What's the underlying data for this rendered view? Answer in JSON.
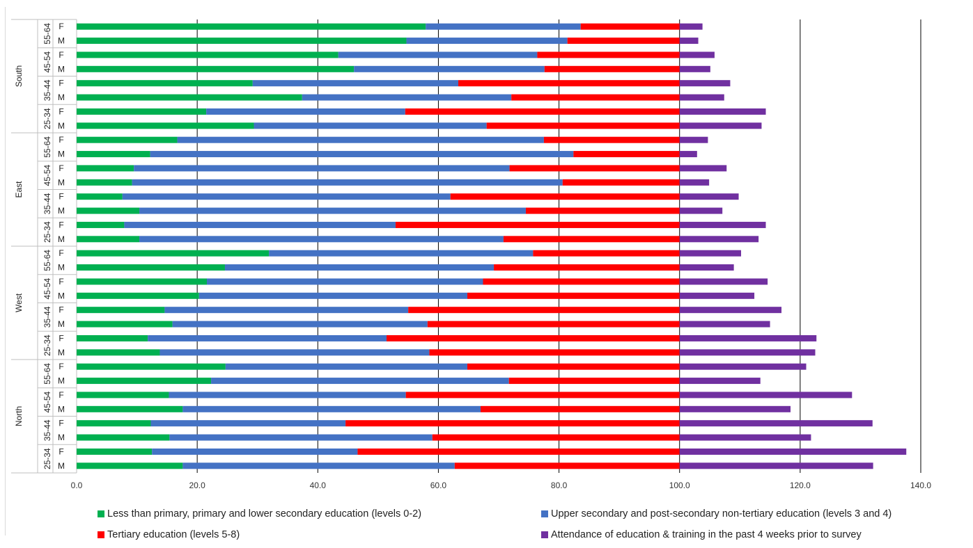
{
  "chart_data": {
    "type": "bar",
    "orientation": "horizontal",
    "stacked": true,
    "xlim": [
      0,
      140
    ],
    "xticks": [
      "0.0",
      "20.0",
      "40.0",
      "60.0",
      "80.0",
      "100.0",
      "120.0",
      "140.0"
    ],
    "grid": true,
    "legend_position": "bottom",
    "regions": [
      "South",
      "East",
      "West",
      "North"
    ],
    "age_groups": [
      "55-64",
      "45-54",
      "35-44",
      "25-34"
    ],
    "sexes": [
      "F",
      "M"
    ],
    "series": [
      {
        "name": "Less than primary, primary and lower secondary education (levels 0-2)",
        "color": "#00b050"
      },
      {
        "name": "Upper secondary and post-secondary non-tertiary education (levels 3 and 4)",
        "color": "#4472c4"
      },
      {
        "name": "Tertiary education (levels 5-8)",
        "color": "#ff0000"
      },
      {
        "name": "Attendance of education & training in the past 4 weeks prior to survey",
        "color": "#7030a0"
      }
    ],
    "rows": [
      {
        "region": "South",
        "age": "55-64",
        "sex": "F",
        "values": [
          57.9,
          25.7,
          16.4,
          3.8
        ]
      },
      {
        "region": "South",
        "age": "55-64",
        "sex": "M",
        "values": [
          54.7,
          26.7,
          18.6,
          3.1
        ]
      },
      {
        "region": "South",
        "age": "45-54",
        "sex": "F",
        "values": [
          43.4,
          33.0,
          23.6,
          5.8
        ]
      },
      {
        "region": "South",
        "age": "45-54",
        "sex": "M",
        "values": [
          46.0,
          31.6,
          22.4,
          5.1
        ]
      },
      {
        "region": "South",
        "age": "35-44",
        "sex": "F",
        "values": [
          29.2,
          34.1,
          36.7,
          8.4
        ]
      },
      {
        "region": "South",
        "age": "35-44",
        "sex": "M",
        "values": [
          37.4,
          34.7,
          27.9,
          7.4
        ]
      },
      {
        "region": "South",
        "age": "25-34",
        "sex": "F",
        "values": [
          21.5,
          33.0,
          45.5,
          14.3
        ]
      },
      {
        "region": "South",
        "age": "25-34",
        "sex": "M",
        "values": [
          29.4,
          38.6,
          32.0,
          13.6
        ]
      },
      {
        "region": "East",
        "age": "55-64",
        "sex": "F",
        "values": [
          16.7,
          60.8,
          22.5,
          4.7
        ]
      },
      {
        "region": "East",
        "age": "55-64",
        "sex": "M",
        "values": [
          12.2,
          70.2,
          17.6,
          2.9
        ]
      },
      {
        "region": "East",
        "age": "45-54",
        "sex": "F",
        "values": [
          9.5,
          62.3,
          28.2,
          7.8
        ]
      },
      {
        "region": "East",
        "age": "45-54",
        "sex": "M",
        "values": [
          9.2,
          71.4,
          19.4,
          4.9
        ]
      },
      {
        "region": "East",
        "age": "35-44",
        "sex": "F",
        "values": [
          7.6,
          54.4,
          38.0,
          9.8
        ]
      },
      {
        "region": "East",
        "age": "35-44",
        "sex": "M",
        "values": [
          10.4,
          64.1,
          25.5,
          7.1
        ]
      },
      {
        "region": "East",
        "age": "25-34",
        "sex": "F",
        "values": [
          7.9,
          45.0,
          47.1,
          14.3
        ]
      },
      {
        "region": "East",
        "age": "25-34",
        "sex": "M",
        "values": [
          10.4,
          60.4,
          29.2,
          13.1
        ]
      },
      {
        "region": "West",
        "age": "55-64",
        "sex": "F",
        "values": [
          31.9,
          43.8,
          24.3,
          10.2
        ]
      },
      {
        "region": "West",
        "age": "55-64",
        "sex": "M",
        "values": [
          24.6,
          44.6,
          30.8,
          9.0
        ]
      },
      {
        "region": "West",
        "age": "45-54",
        "sex": "F",
        "values": [
          21.6,
          45.8,
          32.6,
          14.6
        ]
      },
      {
        "region": "West",
        "age": "45-54",
        "sex": "M",
        "values": [
          20.3,
          44.5,
          35.2,
          12.4
        ]
      },
      {
        "region": "West",
        "age": "35-44",
        "sex": "F",
        "values": [
          14.6,
          40.4,
          45.0,
          16.9
        ]
      },
      {
        "region": "West",
        "age": "35-44",
        "sex": "M",
        "values": [
          15.9,
          42.3,
          41.8,
          15.0
        ]
      },
      {
        "region": "West",
        "age": "25-34",
        "sex": "F",
        "values": [
          11.8,
          39.6,
          48.6,
          22.7
        ]
      },
      {
        "region": "West",
        "age": "25-34",
        "sex": "M",
        "values": [
          13.8,
          44.7,
          41.5,
          22.5
        ]
      },
      {
        "region": "North",
        "age": "55-64",
        "sex": "F",
        "values": [
          24.7,
          40.1,
          35.2,
          21.0
        ]
      },
      {
        "region": "North",
        "age": "55-64",
        "sex": "M",
        "values": [
          22.3,
          49.4,
          28.3,
          13.4
        ]
      },
      {
        "region": "North",
        "age": "45-54",
        "sex": "F",
        "values": [
          15.3,
          39.3,
          45.4,
          28.6
        ]
      },
      {
        "region": "North",
        "age": "45-54",
        "sex": "M",
        "values": [
          17.6,
          49.4,
          33.0,
          18.4
        ]
      },
      {
        "region": "North",
        "age": "35-44",
        "sex": "F",
        "values": [
          12.3,
          32.3,
          55.4,
          32.0
        ]
      },
      {
        "region": "North",
        "age": "35-44",
        "sex": "M",
        "values": [
          15.4,
          43.6,
          41.0,
          21.8
        ]
      },
      {
        "region": "North",
        "age": "25-34",
        "sex": "F",
        "values": [
          12.5,
          34.1,
          53.4,
          37.6
        ]
      },
      {
        "region": "North",
        "age": "25-34",
        "sex": "M",
        "values": [
          17.6,
          45.1,
          37.3,
          32.1
        ]
      }
    ]
  }
}
